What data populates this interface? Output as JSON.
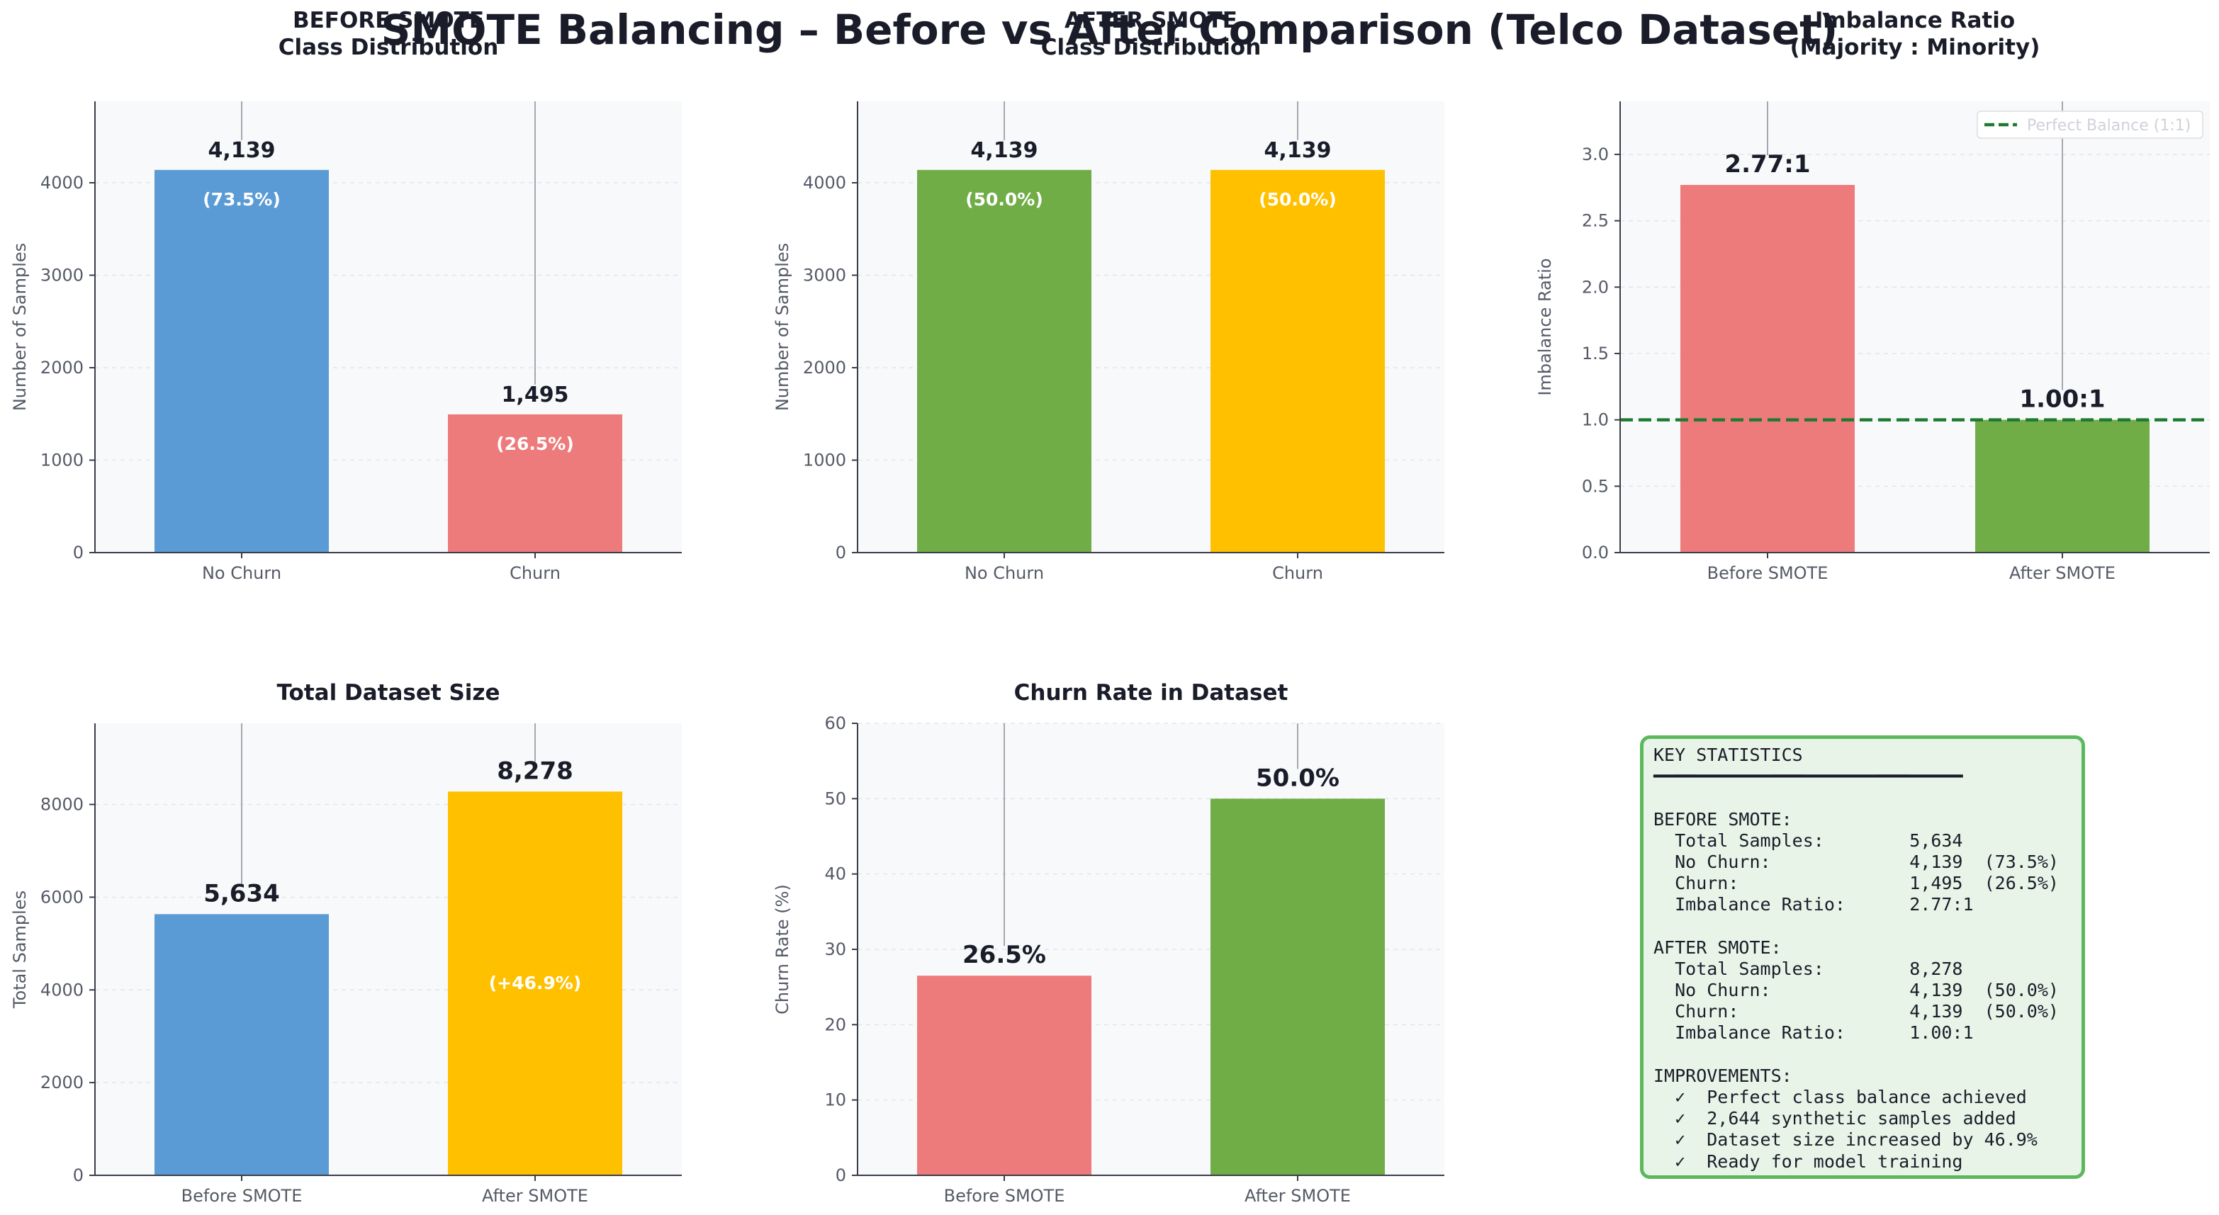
{
  "figure": {
    "title": "SMOTE Balancing – Before vs After Comparison (Telco Dataset)"
  },
  "colors": {
    "blue": "#5b9bd5",
    "red": "#ee7b7b",
    "green": "#70ad47",
    "yellow": "#ffc000",
    "balance_line": "#1e7a30",
    "axes_bg": "#f8f9fb"
  },
  "chart_data": [
    {
      "type": "bar",
      "title": "BEFORE SMOTE\nClass Distribution",
      "ylabel": "Number of Samples",
      "ylim": [
        0,
        4881
      ],
      "yticks": [
        0,
        1000,
        2000,
        3000,
        4000
      ],
      "categories": [
        "No Churn",
        "Churn"
      ],
      "values": [
        4139,
        1495
      ],
      "value_labels": [
        "4,139",
        "1,495"
      ],
      "inner_labels": [
        "(73.5%)",
        "(26.5%)"
      ],
      "bar_colors": [
        "#5b9bd5",
        "#ee7b7b"
      ]
    },
    {
      "type": "bar",
      "title": "AFTER SMOTE\nClass Distribution",
      "ylabel": "Number of Samples",
      "ylim": [
        0,
        4881
      ],
      "yticks": [
        0,
        1000,
        2000,
        3000,
        4000
      ],
      "categories": [
        "No Churn",
        "Churn"
      ],
      "values": [
        4139,
        4139
      ],
      "value_labels": [
        "4,139",
        "4,139"
      ],
      "inner_labels": [
        "(50.0%)",
        "(50.0%)"
      ],
      "bar_colors": [
        "#70ad47",
        "#ffc000"
      ]
    },
    {
      "type": "bar",
      "title": "Imbalance Ratio\n(Majority : Minority)",
      "ylabel": "Imbalance Ratio",
      "ylim": [
        0,
        3.4
      ],
      "yticks": [
        0.0,
        0.5,
        1.0,
        1.5,
        2.0,
        2.5,
        3.0
      ],
      "ytick_decimals": 1,
      "categories": [
        "Before SMOTE",
        "After SMOTE"
      ],
      "values": [
        2.77,
        1.0
      ],
      "value_labels": [
        "2.77:1",
        "1.00:1"
      ],
      "inner_labels": [
        "",
        ""
      ],
      "bar_colors": [
        "#ee7b7b",
        "#70ad47"
      ],
      "reference_line": {
        "value": 1.0,
        "label": "Perfect Balance (1:1)"
      },
      "legend": "top-right"
    },
    {
      "type": "bar",
      "title": "Total Dataset Size",
      "ylabel": "Total Samples",
      "ylim": [
        0,
        9750
      ],
      "yticks": [
        0,
        2000,
        4000,
        6000,
        8000
      ],
      "categories": [
        "Before SMOTE",
        "After SMOTE"
      ],
      "values": [
        5634,
        8278
      ],
      "value_labels": [
        "5,634",
        "8,278"
      ],
      "inner_labels": [
        "",
        "(+46.9%)"
      ],
      "inner_label_mid": true,
      "bar_colors": [
        "#5b9bd5",
        "#ffc000"
      ]
    },
    {
      "type": "bar",
      "title": "Churn Rate in Dataset",
      "ylabel": "Churn Rate (%)",
      "ylim": [
        0,
        60
      ],
      "yticks": [
        0,
        10,
        20,
        30,
        40,
        50,
        60
      ],
      "categories": [
        "Before SMOTE",
        "After SMOTE"
      ],
      "values": [
        26.5,
        50.0
      ],
      "value_labels": [
        "26.5%",
        "50.0%"
      ],
      "inner_labels": [
        "",
        ""
      ],
      "bar_colors": [
        "#ee7b7b",
        "#70ad47"
      ]
    }
  ],
  "key_statistics": {
    "lines": [
      "KEY STATISTICS",
      "━━━━━━━━━━━━━━━━━━━━━━━━━━━━━",
      "",
      "BEFORE SMOTE:",
      "  Total Samples:        5,634",
      "  No Churn:             4,139  (73.5%)",
      "  Churn:                1,495  (26.5%)",
      "  Imbalance Ratio:      2.77:1",
      "",
      "AFTER SMOTE:",
      "  Total Samples:        8,278",
      "  No Churn:             4,139  (50.0%)",
      "  Churn:                4,139  (50.0%)",
      "  Imbalance Ratio:      1.00:1",
      "",
      "IMPROVEMENTS:",
      "  ✓  Perfect class balance achieved",
      "  ✓  2,644 synthetic samples added",
      "  ✓  Dataset size increased by 46.9%",
      "  ✓  Ready for model training"
    ]
  }
}
